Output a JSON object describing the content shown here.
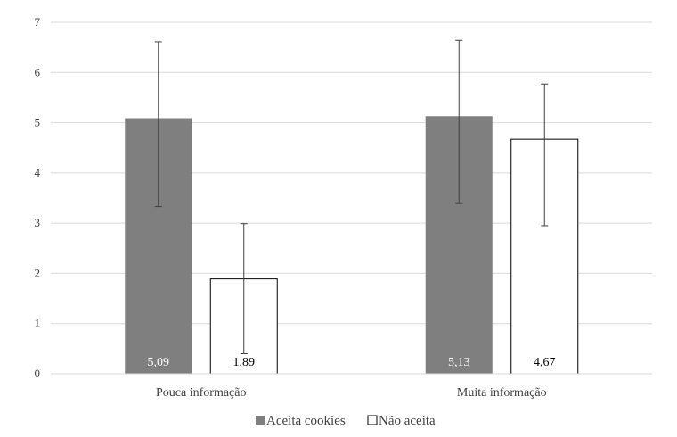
{
  "chart_data": {
    "type": "bar",
    "categories": [
      "Pouca informação",
      "Muita informação"
    ],
    "series": [
      {
        "name": "Aceita cookies",
        "values": [
          5.09,
          5.13
        ],
        "labels": [
          "5,09",
          "5,13"
        ],
        "error_low": [
          3.33,
          3.39
        ],
        "error_high": [
          6.61,
          6.64
        ],
        "color": "#7f7f7f",
        "label_color": "#ffffff"
      },
      {
        "name": "Não aceita",
        "values": [
          1.89,
          4.67
        ],
        "labels": [
          "1,89",
          "4,67"
        ],
        "error_low": [
          0.4,
          2.95
        ],
        "error_high": [
          2.99,
          5.77
        ],
        "color": "#ffffff",
        "label_color": "#000000"
      }
    ],
    "ylim": [
      0,
      7
    ],
    "yticks": [
      "0",
      "1",
      "2",
      "3",
      "4",
      "5",
      "6",
      "7"
    ],
    "grid": true,
    "legend_position": "bottom",
    "title": "",
    "xlabel": "",
    "ylabel": ""
  }
}
